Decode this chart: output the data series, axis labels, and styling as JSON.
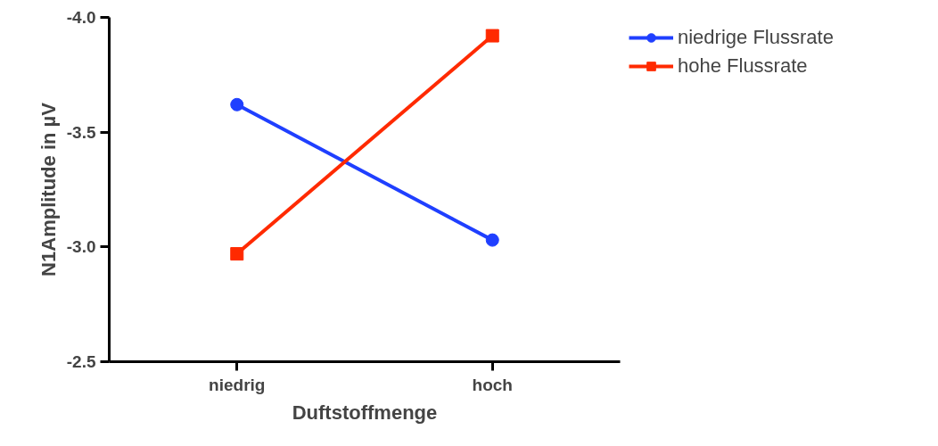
{
  "chart_data": {
    "type": "line",
    "xlabel": "Duftstoffmenge",
    "ylabel": "N1Amplitude in µV",
    "categories": [
      "niedrig",
      "hoch"
    ],
    "series": [
      {
        "name": "niedrige Flussrate",
        "color": "#1f3fff",
        "marker": "circle",
        "values": [
          -3.62,
          -3.03
        ]
      },
      {
        "name": "hohe Flussrate",
        "color": "#ff2a00",
        "marker": "square",
        "values": [
          -2.97,
          -3.92
        ]
      }
    ],
    "ylim": [
      -2.5,
      -4.0
    ],
    "yticks": [
      {
        "value": -4.0,
        "label": "-4.0"
      },
      {
        "value": -3.5,
        "label": "-3.5"
      },
      {
        "value": -3.0,
        "label": "-3.0"
      },
      {
        "value": -2.5,
        "label": "-2.5"
      }
    ],
    "grid": false,
    "legend": "right",
    "line_style": "solid"
  }
}
